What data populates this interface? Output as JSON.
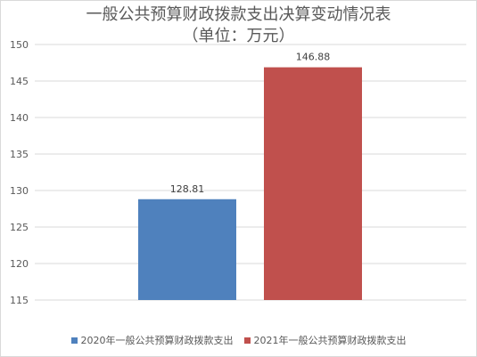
{
  "chart_data": {
    "type": "bar",
    "title_line1": "一般公共预算财政拨款支出决算变动情况表",
    "title_line2": "（单位：万元）",
    "xlabel": "",
    "ylabel": "",
    "ylim": [
      115,
      150
    ],
    "yticks": [
      115,
      120,
      125,
      130,
      135,
      140,
      145,
      150
    ],
    "grid": true,
    "legend_position": "bottom",
    "series": [
      {
        "name": "2020年一般公共预算财政拨款支出",
        "value": 128.81,
        "label": "128.81",
        "color": "#4f81bd"
      },
      {
        "name": "2021年一般公共预算财政拨款支出",
        "value": 146.88,
        "label": "146.88",
        "color": "#c0504d"
      }
    ]
  }
}
